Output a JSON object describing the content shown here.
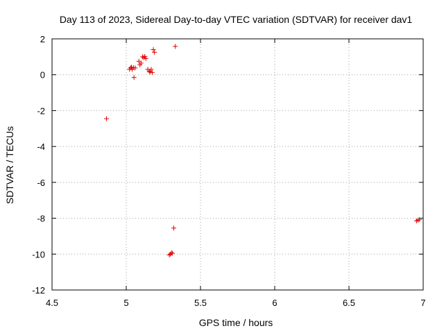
{
  "chart_data": {
    "type": "scatter",
    "title": "Day 113 of 2023, Sidereal Day-to-day VTEC variation (SDTVAR) for receiver dav1",
    "xlabel": "GPS time / hours",
    "ylabel": "SDTVAR / TECUs",
    "xlim": [
      4.5,
      7
    ],
    "ylim": [
      -12,
      2
    ],
    "xticks": [
      4.5,
      5,
      5.5,
      6,
      6.5,
      7
    ],
    "xtick_labels": [
      "4.5",
      "5",
      "5.5",
      "6",
      "6.5",
      "7"
    ],
    "yticks": [
      -12,
      -10,
      -8,
      -6,
      -4,
      -2,
      0,
      2
    ],
    "ytick_labels": [
      "-12",
      "-10",
      "-8",
      "-6",
      "-4",
      "-2",
      "0",
      "2"
    ],
    "grid": true,
    "marker": "+",
    "color": "#e00000",
    "series": [
      {
        "name": "dav1",
        "points": [
          [
            4.867,
            -2.45
          ],
          [
            5.022,
            0.3
          ],
          [
            5.03,
            0.38
          ],
          [
            5.035,
            0.42
          ],
          [
            5.04,
            0.3
          ],
          [
            5.048,
            0.4
          ],
          [
            5.052,
            -0.15
          ],
          [
            5.06,
            0.38
          ],
          [
            5.085,
            0.75
          ],
          [
            5.092,
            0.55
          ],
          [
            5.1,
            0.65
          ],
          [
            5.11,
            1.0
          ],
          [
            5.118,
            0.95
          ],
          [
            5.125,
            1.02
          ],
          [
            5.132,
            0.9
          ],
          [
            5.145,
            0.3
          ],
          [
            5.155,
            0.2
          ],
          [
            5.16,
            0.15
          ],
          [
            5.168,
            0.3
          ],
          [
            5.175,
            0.12
          ],
          [
            5.182,
            1.4
          ],
          [
            5.19,
            1.25
          ],
          [
            5.33,
            1.58
          ],
          [
            5.29,
            -10.05
          ],
          [
            5.297,
            -10.0
          ],
          [
            5.305,
            -9.93
          ],
          [
            5.31,
            -9.95
          ],
          [
            5.32,
            -8.55
          ],
          [
            6.955,
            -8.15
          ],
          [
            6.965,
            -8.1
          ],
          [
            6.975,
            -8.08
          ]
        ]
      }
    ]
  }
}
